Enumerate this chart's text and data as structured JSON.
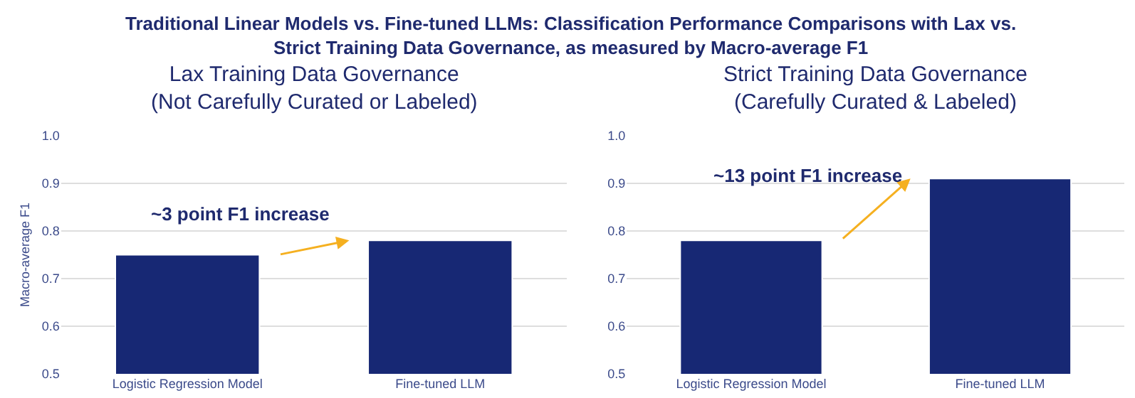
{
  "chart_data": [
    {
      "type": "bar",
      "title": "Traditional Linear Models vs. Fine-tuned LLMs: Classification Performance Comparisons with Lax vs.\nStrict Training Data Governance, as measured by Macro-average F1",
      "subtitle": "Lax Training Data Governance\n(Not Carefully Curated or Labeled)",
      "ylabel": "Macro-average F1",
      "categories": [
        "Logistic Regression Model",
        "Fine-tuned LLM"
      ],
      "values": [
        0.75,
        0.78
      ],
      "color": "#172874",
      "ylim": [
        0.5,
        1.0
      ],
      "yticks": [
        {
          "value": 0.5,
          "label": "0.5"
        },
        {
          "value": 0.6,
          "label": "0.6"
        },
        {
          "value": 0.7,
          "label": "0.7"
        },
        {
          "value": 0.8,
          "label": "0.8"
        },
        {
          "value": 0.9,
          "label": "0.9"
        },
        {
          "value": 1.0,
          "label": "1.0"
        }
      ],
      "grid": "y",
      "annotations": [
        "~3 point F1 increase"
      ]
    },
    {
      "type": "bar",
      "subtitle": "Strict Training Data Governance\n(Carefully Curated & Labeled)",
      "categories": [
        "Logistic Regression Model",
        "Fine-tuned LLM"
      ],
      "values": [
        0.78,
        0.91
      ],
      "color": "#172874",
      "ylim": [
        0.5,
        1.0
      ],
      "yticks": [
        {
          "value": 0.5,
          "label": "0.5"
        },
        {
          "value": 0.6,
          "label": "0.6"
        },
        {
          "value": 0.7,
          "label": "0.7"
        },
        {
          "value": 0.8,
          "label": "0.8"
        },
        {
          "value": 0.9,
          "label": "0.9"
        },
        {
          "value": 1.0,
          "label": "1.0"
        }
      ],
      "grid": "y",
      "annotations": [
        "~13 point F1 increase"
      ]
    }
  ]
}
